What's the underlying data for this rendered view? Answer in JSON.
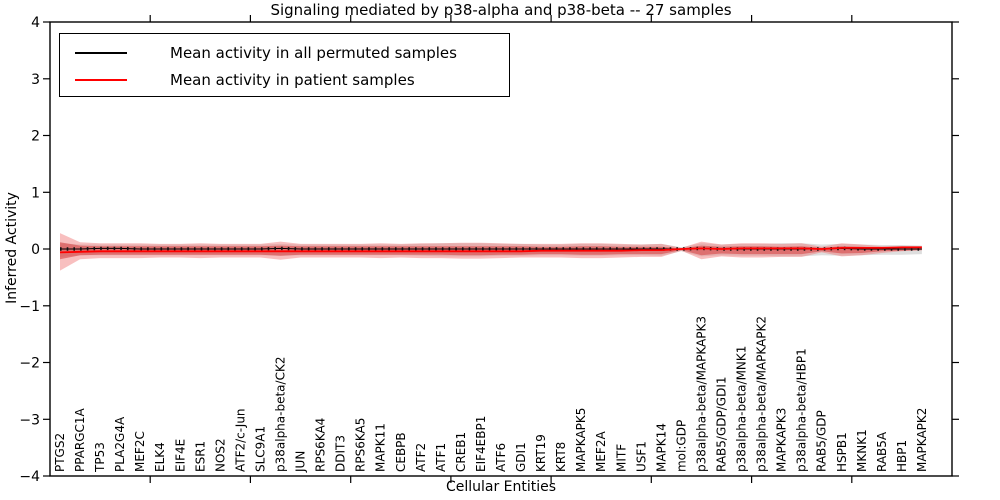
{
  "chart_data": {
    "type": "line",
    "title": "Signaling mediated by p38-alpha and p38-beta -- 27 samples",
    "xlabel": "Cellular Entities",
    "ylabel": "Inferred Activity",
    "ylim": [
      -4,
      4
    ],
    "yticks": [
      4,
      3,
      2,
      1,
      0,
      -1,
      -2,
      -3,
      -4
    ],
    "grid": false,
    "legend_position": "upper left",
    "frame_color": "#000000",
    "background_color": "#ffffff",
    "categories": [
      "PTGS2",
      "PPARGC1A",
      "TP53",
      "PLA2G4A",
      "MEF2C",
      "ELK4",
      "EIF4E",
      "ESR1",
      "NOS2",
      "ATF2/c-Jun",
      "SLC9A1",
      "p38alpha-beta/CK2",
      "JUN",
      "RPS6KA4",
      "DDIT3",
      "RPS6KA5",
      "MAPK11",
      "CEBPB",
      "ATF2",
      "ATF1",
      "CREB1",
      "EIF4EBP1",
      "ATF6",
      "GDI1",
      "KRT19",
      "KRT8",
      "MAPKAPK5",
      "MEF2A",
      "MITF",
      "USF1",
      "MAPK14",
      "mol:GDP",
      "p38alpha-beta/MAPKAPK3",
      "RAB5/GDP/GDI1",
      "p38alpha-beta/MNK1",
      "p38alpha-beta/MAPKAPK2",
      "MAPKAPK3",
      "p38alpha-beta/HBP1",
      "RAB5/GDP",
      "HSPB1",
      "MKNK1",
      "RAB5A",
      "HBP1",
      "MAPKAPK2"
    ],
    "series": [
      {
        "name": "Mean activity in all permuted samples",
        "color": "#000000",
        "values": [
          0,
          0,
          0.01,
          0.01,
          0,
          0,
          0,
          0,
          0,
          0,
          0,
          0.01,
          0,
          0,
          0,
          0,
          0,
          0,
          0,
          0,
          0,
          0,
          0,
          0,
          0,
          0,
          0,
          0,
          0,
          0,
          0,
          0,
          0.01,
          0,
          0,
          0,
          0,
          0,
          0,
          0.01,
          0,
          0,
          0,
          0
        ]
      },
      {
        "name": "Mean activity in patient samples",
        "color": "#ff0000",
        "values": [
          -0.06,
          -0.05,
          -0.04,
          -0.04,
          -0.04,
          -0.04,
          -0.04,
          -0.04,
          -0.04,
          -0.04,
          -0.04,
          -0.04,
          -0.04,
          -0.04,
          -0.04,
          -0.04,
          -0.04,
          -0.04,
          -0.04,
          -0.04,
          -0.04,
          -0.04,
          -0.04,
          -0.04,
          -0.03,
          -0.03,
          -0.03,
          -0.03,
          -0.03,
          -0.02,
          -0.02,
          0,
          0.01,
          0,
          0.01,
          0.01,
          0.01,
          0.01,
          0,
          0.02,
          0.02,
          0.02,
          0.03,
          0.03
        ]
      }
    ],
    "bands": [
      {
        "name": "permuted-samples-std-band",
        "color": "#c8c8c8",
        "opacity": 0.6,
        "upper": [
          0.1,
          0.08,
          0.08,
          0.08,
          0.08,
          0.08,
          0.08,
          0.08,
          0.08,
          0.08,
          0.08,
          0.09,
          0.08,
          0.08,
          0.08,
          0.08,
          0.08,
          0.08,
          0.09,
          0.1,
          0.1,
          0.1,
          0.09,
          0.09,
          0.08,
          0.08,
          0.09,
          0.09,
          0.08,
          0.08,
          0.09,
          0.03,
          0.1,
          0.08,
          0.09,
          0.09,
          0.1,
          0.1,
          0.08,
          0.09,
          0.08,
          0.07,
          0.07,
          0.06
        ],
        "lower": [
          -0.14,
          -0.11,
          -0.11,
          -0.11,
          -0.11,
          -0.11,
          -0.11,
          -0.11,
          -0.11,
          -0.11,
          -0.11,
          -0.12,
          -0.11,
          -0.11,
          -0.11,
          -0.11,
          -0.11,
          -0.11,
          -0.12,
          -0.13,
          -0.13,
          -0.13,
          -0.12,
          -0.12,
          -0.11,
          -0.11,
          -0.12,
          -0.12,
          -0.11,
          -0.11,
          -0.12,
          -0.04,
          -0.13,
          -0.11,
          -0.12,
          -0.12,
          -0.13,
          -0.13,
          -0.11,
          -0.12,
          -0.11,
          -0.1,
          -0.1,
          -0.09
        ]
      },
      {
        "name": "patient-samples-std-outer-band",
        "color": "#f07070",
        "opacity": 0.45,
        "upper": [
          0.28,
          0.12,
          0.1,
          0.1,
          0.1,
          0.09,
          0.09,
          0.1,
          0.09,
          0.09,
          0.09,
          0.13,
          0.09,
          0.09,
          0.09,
          0.09,
          0.1,
          0.09,
          0.1,
          0.1,
          0.11,
          0.11,
          0.1,
          0.09,
          0.09,
          0.09,
          0.1,
          0.1,
          0.09,
          0.08,
          0.09,
          0.02,
          0.13,
          0.08,
          0.1,
          0.1,
          0.09,
          0.1,
          0.04,
          0.1,
          0.08,
          0.05,
          0.03,
          0.01
        ],
        "lower": [
          -0.38,
          -0.18,
          -0.16,
          -0.16,
          -0.16,
          -0.15,
          -0.15,
          -0.16,
          -0.15,
          -0.15,
          -0.15,
          -0.19,
          -0.15,
          -0.15,
          -0.15,
          -0.15,
          -0.16,
          -0.15,
          -0.16,
          -0.16,
          -0.17,
          -0.17,
          -0.16,
          -0.15,
          -0.15,
          -0.15,
          -0.16,
          -0.16,
          -0.15,
          -0.14,
          -0.14,
          -0.03,
          -0.18,
          -0.13,
          -0.15,
          -0.15,
          -0.14,
          -0.14,
          -0.06,
          -0.13,
          -0.11,
          -0.07,
          -0.04,
          -0.02
        ]
      },
      {
        "name": "patient-samples-std-inner-band",
        "color": "#d94f4f",
        "opacity": 0.65,
        "upper": [
          0.12,
          0.06,
          0.05,
          0.05,
          0.05,
          0.05,
          0.05,
          0.05,
          0.05,
          0.05,
          0.05,
          0.06,
          0.05,
          0.05,
          0.05,
          0.05,
          0.05,
          0.05,
          0.05,
          0.05,
          0.05,
          0.05,
          0.05,
          0.05,
          0.04,
          0.04,
          0.05,
          0.05,
          0.04,
          0.04,
          0.04,
          0.01,
          0.06,
          0.04,
          0.05,
          0.05,
          0.04,
          0.05,
          0.02,
          0.05,
          0.04,
          0.02,
          0.01,
          0.01
        ],
        "lower": [
          -0.18,
          -0.11,
          -0.1,
          -0.1,
          -0.1,
          -0.1,
          -0.1,
          -0.1,
          -0.1,
          -0.1,
          -0.1,
          -0.12,
          -0.1,
          -0.1,
          -0.1,
          -0.1,
          -0.1,
          -0.1,
          -0.1,
          -0.1,
          -0.11,
          -0.11,
          -0.1,
          -0.1,
          -0.09,
          -0.09,
          -0.1,
          -0.1,
          -0.09,
          -0.09,
          -0.09,
          -0.02,
          -0.11,
          -0.08,
          -0.09,
          -0.09,
          -0.09,
          -0.09,
          -0.04,
          -0.08,
          -0.07,
          -0.04,
          -0.03,
          -0.02
        ]
      }
    ],
    "legend": {
      "items": [
        {
          "label": "Mean activity in all permuted samples",
          "color": "#000000"
        },
        {
          "label": "Mean activity in patient samples",
          "color": "#ff0000"
        }
      ]
    }
  }
}
